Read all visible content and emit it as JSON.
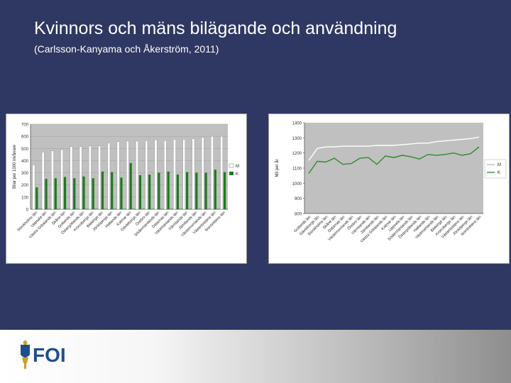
{
  "slide": {
    "title": "Kvinnors och mäns bilägande och användning",
    "subtitle": "(Carlsson-Kanyama och Åkerström, 2011)",
    "logo_text": "FOI"
  },
  "colors": {
    "background": "#2f3862",
    "plot_bg": "#c0c0c0",
    "men_bar": "#ffffff",
    "women_bar": "#1e7a1e",
    "men_line": "#ffffff",
    "women_line": "#2e8b2e",
    "logo_blue": "#1f4e8c",
    "logo_gold": "#c8a12a"
  },
  "chart_data": [
    {
      "type": "bar",
      "ylabel": "Bilar per 1000 invånare",
      "ylim": [
        0,
        700
      ],
      "yticks": [
        0,
        100,
        200,
        300,
        400,
        500,
        600,
        700
      ],
      "grid": true,
      "legend_position": "right",
      "categories": [
        "Stockholms län",
        "Uppsala län",
        "Västra Götalands län",
        "Skåne län",
        "Gotlands län",
        "Östergötlands län",
        "Kronobergs län",
        "Blekinge län",
        "Jönköpings län",
        "Hallands län",
        "Kalmar län",
        "Gävleborgs län",
        "Örebro län",
        "Södermanlands län",
        "Dalarnas län",
        "Västmanlands län",
        "Värmlands län",
        "Jämtlands län",
        "Västernorrlands län",
        "Västerbottens län",
        "Norrbottens län"
      ],
      "series": [
        {
          "name": "M",
          "values": [
            365,
            470,
            480,
            490,
            515,
            515,
            520,
            520,
            545,
            555,
            560,
            560,
            565,
            570,
            565,
            575,
            575,
            580,
            590,
            600,
            600
          ]
        },
        {
          "name": "K",
          "values": [
            180,
            250,
            255,
            265,
            255,
            270,
            255,
            310,
            305,
            260,
            380,
            280,
            285,
            300,
            310,
            285,
            305,
            300,
            300,
            325,
            305
          ]
        }
      ]
    },
    {
      "type": "line",
      "ylabel": "Mil per år",
      "ylim": [
        800,
        1400
      ],
      "yticks": [
        800,
        900,
        1000,
        1100,
        1200,
        1300,
        1400
      ],
      "grid": false,
      "legend_position": "right",
      "categories": [
        "Gotlands län",
        "Gävleborgs län",
        "Stockholms län",
        "Skåne län",
        "Dalarnas län",
        "Västernorrlands län",
        "Örebro län",
        "Värmlands län",
        "Jämtlands län",
        "Västra Götalands län",
        "Kalmar län",
        "Uppsala län",
        "Södermanlands län",
        "Östergötlands län",
        "Hallands län",
        "Västmanlands län",
        "Blekinge län",
        "Kronobergs län",
        "Västerbottens län",
        "Jönköpings län",
        "Norrbottens län"
      ],
      "series": [
        {
          "name": "M",
          "values": [
            1150,
            1230,
            1240,
            1240,
            1245,
            1245,
            1245,
            1245,
            1250,
            1250,
            1250,
            1255,
            1260,
            1265,
            1265,
            1275,
            1280,
            1285,
            1290,
            1295,
            1305
          ]
        },
        {
          "name": "K",
          "values": [
            1065,
            1145,
            1140,
            1165,
            1125,
            1130,
            1165,
            1170,
            1125,
            1180,
            1170,
            1185,
            1175,
            1160,
            1190,
            1185,
            1190,
            1200,
            1185,
            1195,
            1240
          ]
        }
      ]
    }
  ]
}
